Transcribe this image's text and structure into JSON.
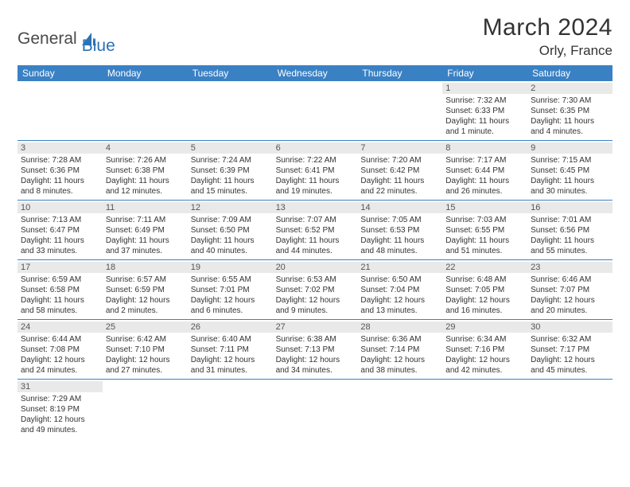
{
  "brand": {
    "word1": "General",
    "word2": "Blue"
  },
  "title": "March 2024",
  "location": "Orly, France",
  "colors": {
    "header_bg": "#3a81c4",
    "daynum_bg": "#e9e9e9",
    "text": "#333333",
    "brand_gray": "#4a4a4a",
    "brand_blue": "#2a72b5"
  },
  "day_headers": [
    "Sunday",
    "Monday",
    "Tuesday",
    "Wednesday",
    "Thursday",
    "Friday",
    "Saturday"
  ],
  "weeks": [
    [
      {
        "n": "",
        "sunrise": "",
        "sunset": "",
        "daylight": ""
      },
      {
        "n": "",
        "sunrise": "",
        "sunset": "",
        "daylight": ""
      },
      {
        "n": "",
        "sunrise": "",
        "sunset": "",
        "daylight": ""
      },
      {
        "n": "",
        "sunrise": "",
        "sunset": "",
        "daylight": ""
      },
      {
        "n": "",
        "sunrise": "",
        "sunset": "",
        "daylight": ""
      },
      {
        "n": "1",
        "sunrise": "Sunrise: 7:32 AM",
        "sunset": "Sunset: 6:33 PM",
        "daylight": "Daylight: 11 hours and 1 minute."
      },
      {
        "n": "2",
        "sunrise": "Sunrise: 7:30 AM",
        "sunset": "Sunset: 6:35 PM",
        "daylight": "Daylight: 11 hours and 4 minutes."
      }
    ],
    [
      {
        "n": "3",
        "sunrise": "Sunrise: 7:28 AM",
        "sunset": "Sunset: 6:36 PM",
        "daylight": "Daylight: 11 hours and 8 minutes."
      },
      {
        "n": "4",
        "sunrise": "Sunrise: 7:26 AM",
        "sunset": "Sunset: 6:38 PM",
        "daylight": "Daylight: 11 hours and 12 minutes."
      },
      {
        "n": "5",
        "sunrise": "Sunrise: 7:24 AM",
        "sunset": "Sunset: 6:39 PM",
        "daylight": "Daylight: 11 hours and 15 minutes."
      },
      {
        "n": "6",
        "sunrise": "Sunrise: 7:22 AM",
        "sunset": "Sunset: 6:41 PM",
        "daylight": "Daylight: 11 hours and 19 minutes."
      },
      {
        "n": "7",
        "sunrise": "Sunrise: 7:20 AM",
        "sunset": "Sunset: 6:42 PM",
        "daylight": "Daylight: 11 hours and 22 minutes."
      },
      {
        "n": "8",
        "sunrise": "Sunrise: 7:17 AM",
        "sunset": "Sunset: 6:44 PM",
        "daylight": "Daylight: 11 hours and 26 minutes."
      },
      {
        "n": "9",
        "sunrise": "Sunrise: 7:15 AM",
        "sunset": "Sunset: 6:45 PM",
        "daylight": "Daylight: 11 hours and 30 minutes."
      }
    ],
    [
      {
        "n": "10",
        "sunrise": "Sunrise: 7:13 AM",
        "sunset": "Sunset: 6:47 PM",
        "daylight": "Daylight: 11 hours and 33 minutes."
      },
      {
        "n": "11",
        "sunrise": "Sunrise: 7:11 AM",
        "sunset": "Sunset: 6:49 PM",
        "daylight": "Daylight: 11 hours and 37 minutes."
      },
      {
        "n": "12",
        "sunrise": "Sunrise: 7:09 AM",
        "sunset": "Sunset: 6:50 PM",
        "daylight": "Daylight: 11 hours and 40 minutes."
      },
      {
        "n": "13",
        "sunrise": "Sunrise: 7:07 AM",
        "sunset": "Sunset: 6:52 PM",
        "daylight": "Daylight: 11 hours and 44 minutes."
      },
      {
        "n": "14",
        "sunrise": "Sunrise: 7:05 AM",
        "sunset": "Sunset: 6:53 PM",
        "daylight": "Daylight: 11 hours and 48 minutes."
      },
      {
        "n": "15",
        "sunrise": "Sunrise: 7:03 AM",
        "sunset": "Sunset: 6:55 PM",
        "daylight": "Daylight: 11 hours and 51 minutes."
      },
      {
        "n": "16",
        "sunrise": "Sunrise: 7:01 AM",
        "sunset": "Sunset: 6:56 PM",
        "daylight": "Daylight: 11 hours and 55 minutes."
      }
    ],
    [
      {
        "n": "17",
        "sunrise": "Sunrise: 6:59 AM",
        "sunset": "Sunset: 6:58 PM",
        "daylight": "Daylight: 11 hours and 58 minutes."
      },
      {
        "n": "18",
        "sunrise": "Sunrise: 6:57 AM",
        "sunset": "Sunset: 6:59 PM",
        "daylight": "Daylight: 12 hours and 2 minutes."
      },
      {
        "n": "19",
        "sunrise": "Sunrise: 6:55 AM",
        "sunset": "Sunset: 7:01 PM",
        "daylight": "Daylight: 12 hours and 6 minutes."
      },
      {
        "n": "20",
        "sunrise": "Sunrise: 6:53 AM",
        "sunset": "Sunset: 7:02 PM",
        "daylight": "Daylight: 12 hours and 9 minutes."
      },
      {
        "n": "21",
        "sunrise": "Sunrise: 6:50 AM",
        "sunset": "Sunset: 7:04 PM",
        "daylight": "Daylight: 12 hours and 13 minutes."
      },
      {
        "n": "22",
        "sunrise": "Sunrise: 6:48 AM",
        "sunset": "Sunset: 7:05 PM",
        "daylight": "Daylight: 12 hours and 16 minutes."
      },
      {
        "n": "23",
        "sunrise": "Sunrise: 6:46 AM",
        "sunset": "Sunset: 7:07 PM",
        "daylight": "Daylight: 12 hours and 20 minutes."
      }
    ],
    [
      {
        "n": "24",
        "sunrise": "Sunrise: 6:44 AM",
        "sunset": "Sunset: 7:08 PM",
        "daylight": "Daylight: 12 hours and 24 minutes."
      },
      {
        "n": "25",
        "sunrise": "Sunrise: 6:42 AM",
        "sunset": "Sunset: 7:10 PM",
        "daylight": "Daylight: 12 hours and 27 minutes."
      },
      {
        "n": "26",
        "sunrise": "Sunrise: 6:40 AM",
        "sunset": "Sunset: 7:11 PM",
        "daylight": "Daylight: 12 hours and 31 minutes."
      },
      {
        "n": "27",
        "sunrise": "Sunrise: 6:38 AM",
        "sunset": "Sunset: 7:13 PM",
        "daylight": "Daylight: 12 hours and 34 minutes."
      },
      {
        "n": "28",
        "sunrise": "Sunrise: 6:36 AM",
        "sunset": "Sunset: 7:14 PM",
        "daylight": "Daylight: 12 hours and 38 minutes."
      },
      {
        "n": "29",
        "sunrise": "Sunrise: 6:34 AM",
        "sunset": "Sunset: 7:16 PM",
        "daylight": "Daylight: 12 hours and 42 minutes."
      },
      {
        "n": "30",
        "sunrise": "Sunrise: 6:32 AM",
        "sunset": "Sunset: 7:17 PM",
        "daylight": "Daylight: 12 hours and 45 minutes."
      }
    ],
    [
      {
        "n": "31",
        "sunrise": "Sunrise: 7:29 AM",
        "sunset": "Sunset: 8:19 PM",
        "daylight": "Daylight: 12 hours and 49 minutes."
      },
      {
        "n": "",
        "sunrise": "",
        "sunset": "",
        "daylight": ""
      },
      {
        "n": "",
        "sunrise": "",
        "sunset": "",
        "daylight": ""
      },
      {
        "n": "",
        "sunrise": "",
        "sunset": "",
        "daylight": ""
      },
      {
        "n": "",
        "sunrise": "",
        "sunset": "",
        "daylight": ""
      },
      {
        "n": "",
        "sunrise": "",
        "sunset": "",
        "daylight": ""
      },
      {
        "n": "",
        "sunrise": "",
        "sunset": "",
        "daylight": ""
      }
    ]
  ]
}
